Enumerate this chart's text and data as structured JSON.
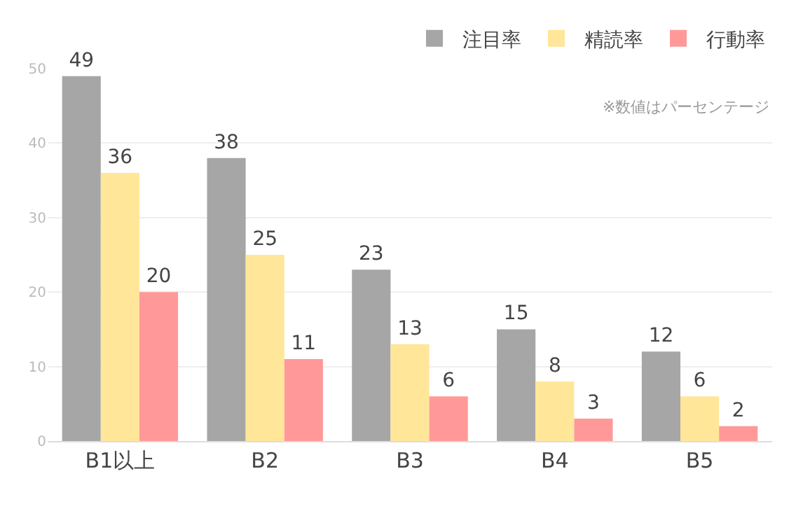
{
  "chart_data": {
    "type": "bar",
    "categories": [
      "B1以上",
      "B2",
      "B3",
      "B4",
      "B5"
    ],
    "series": [
      {
        "name": "注目率",
        "color": "#a6a6a6",
        "values": [
          49,
          38,
          23,
          15,
          12
        ]
      },
      {
        "name": "精読率",
        "color": "#ffe699",
        "values": [
          36,
          25,
          13,
          8,
          6
        ]
      },
      {
        "name": "行動率",
        "color": "#ff9999",
        "values": [
          20,
          11,
          6,
          3,
          2
        ]
      }
    ],
    "ylim": [
      0,
      50
    ],
    "yticks": [
      0,
      10,
      20,
      30,
      40,
      50
    ],
    "grid": "y",
    "legend": "top right",
    "data_labels": true,
    "annotations": [
      "※数値はパーセンテージ"
    ]
  }
}
